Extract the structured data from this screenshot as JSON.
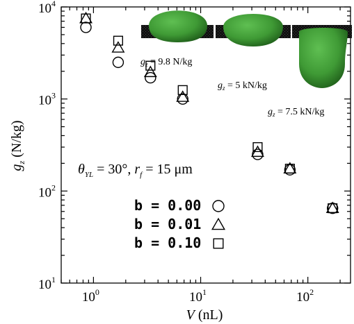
{
  "chart_data": {
    "type": "scatter",
    "x_scale": "log",
    "y_scale": "log",
    "xlim": [
      0.5,
      250
    ],
    "ylim": [
      10,
      10000
    ],
    "x_ticks": [
      {
        "value": 1,
        "base": "10",
        "exp": "0"
      },
      {
        "value": 10,
        "base": "10",
        "exp": "1"
      },
      {
        "value": 100,
        "base": "10",
        "exp": "2"
      }
    ],
    "y_ticks": [
      {
        "value": 10,
        "base": "10",
        "exp": "1"
      },
      {
        "value": 100,
        "base": "10",
        "exp": "2"
      },
      {
        "value": 1000,
        "base": "10",
        "exp": "3"
      },
      {
        "value": 10000,
        "base": "10",
        "exp": "4"
      }
    ],
    "xlabel": {
      "main": "V",
      "unit": " (nL)"
    },
    "ylabel": {
      "main": "g",
      "sub": "z",
      "unit": " (N/kg)"
    },
    "condition": {
      "theta": "θ",
      "theta_sub": "YL",
      "theta_val": " = 30°, ",
      "r": "r",
      "r_sub": "f",
      "r_val": " = 15 μm"
    },
    "legend_position": "lower-middle",
    "series": [
      {
        "name": "b = 0.00",
        "marker": "circle",
        "x": [
          0.85,
          1.7,
          3.4,
          6.8,
          34,
          68,
          170
        ],
        "y": [
          6000,
          2500,
          1700,
          1000,
          250,
          170,
          65
        ]
      },
      {
        "name": "b = 0.01",
        "marker": "triangle",
        "x": [
          0.85,
          1.7,
          3.4,
          6.8,
          34,
          68,
          170
        ],
        "y": [
          7500,
          3600,
          1950,
          1050,
          265,
          175,
          65
        ]
      },
      {
        "name": "b = 0.10",
        "marker": "square",
        "x": [
          0.85,
          1.7,
          3.4,
          6.8,
          34,
          68,
          170
        ],
        "y": [
          7500,
          4300,
          2300,
          1250,
          300,
          175,
          65
        ]
      }
    ],
    "annotations": [
      {
        "gz": "g",
        "sub": "z",
        "text": " = 9.8 N/kg"
      },
      {
        "gz": "g",
        "sub": "z",
        "text": " = 5 kN/kg"
      },
      {
        "gz": "g",
        "sub": "z",
        "text": " = 7.5 kN/kg"
      }
    ],
    "colors": {
      "droplet": "#3f9a35",
      "droplet_dark": "#1f5e1a",
      "substrate": "#111111",
      "axis": "#000000"
    }
  }
}
